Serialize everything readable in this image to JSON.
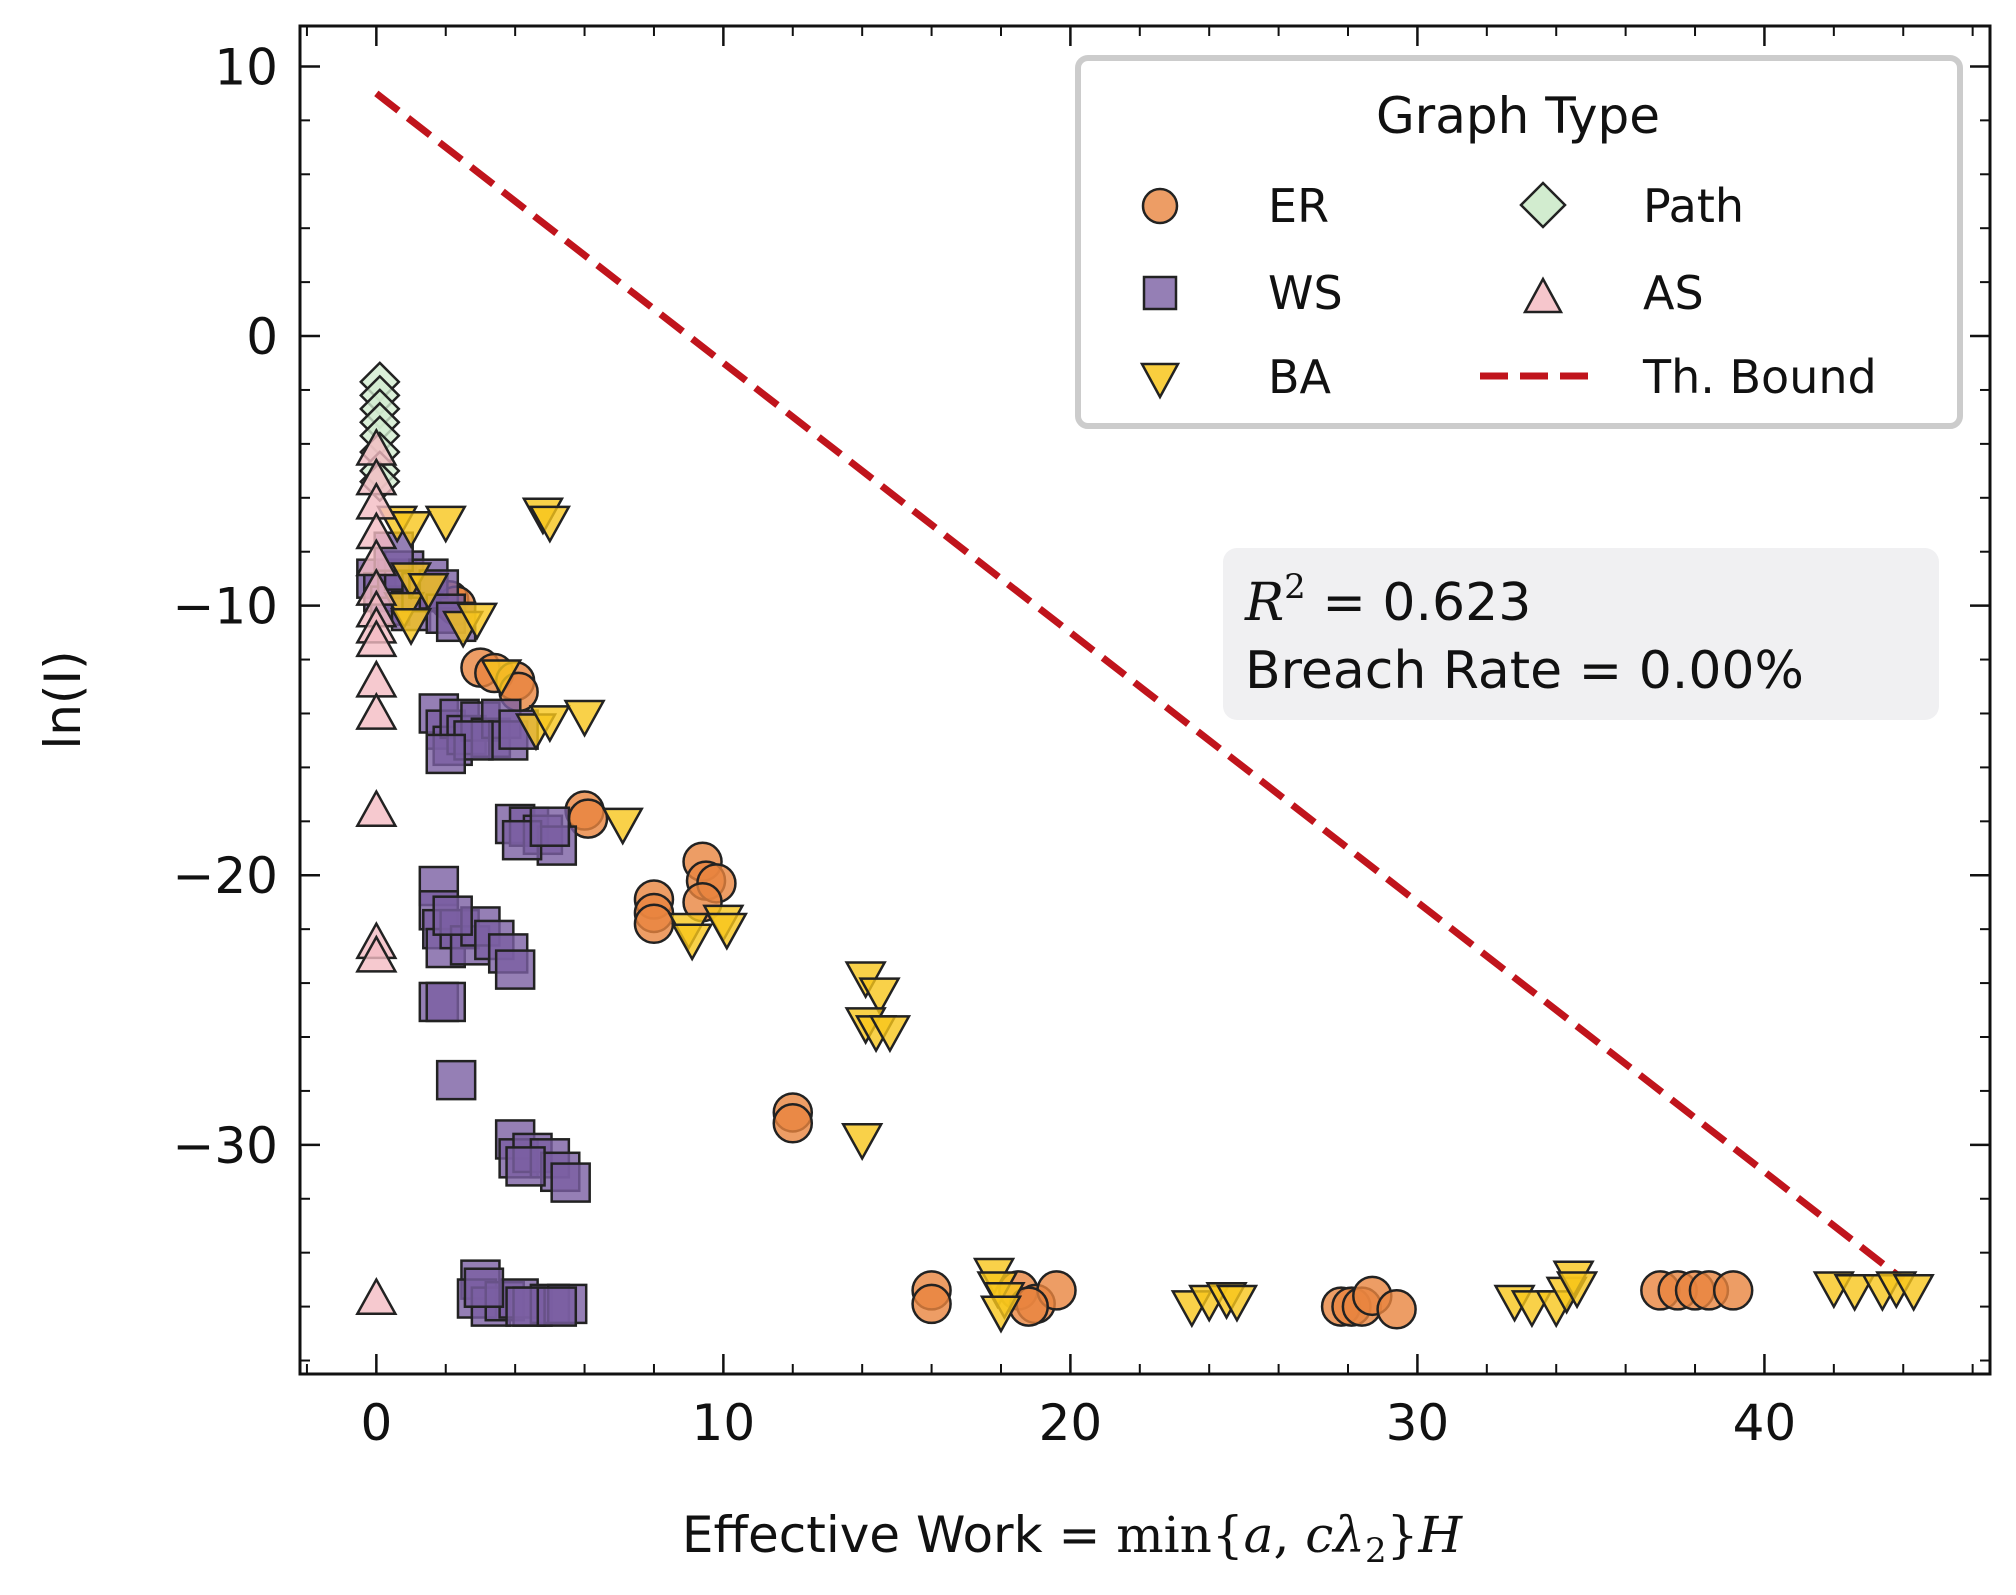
{
  "chart_data": {
    "type": "scatter",
    "xlabel_prefix": "Effective Work = ",
    "xlabel_math": {
      "func": "min",
      "lbrace": "{",
      "a": "a",
      "comma": ", ",
      "c": "c",
      "lambda": "λ",
      "sub": "2",
      "rbrace": "}",
      "H": "H"
    },
    "ylabel": "ln(I)",
    "xlim": [
      -2.2,
      46.5
    ],
    "ylim": [
      -38.5,
      11.5
    ],
    "xticks": [
      0,
      10,
      20,
      30,
      40
    ],
    "yticks": [
      10,
      0,
      -10,
      -20,
      -30
    ],
    "xtick_labels": [
      "0",
      "10",
      "20",
      "30",
      "40"
    ],
    "ytick_labels": [
      "10",
      "0",
      "−10",
      "−20",
      "−30"
    ],
    "legend": {
      "title": "Graph Type",
      "position": "top-right",
      "entries": [
        {
          "label": "ER",
          "marker": "circle"
        },
        {
          "label": "WS",
          "marker": "square"
        },
        {
          "label": "BA",
          "marker": "triangle-down"
        },
        {
          "label": "Path",
          "marker": "diamond"
        },
        {
          "label": "AS",
          "marker": "triangle-up"
        },
        {
          "label": "Th. Bound",
          "marker": "dashed-line"
        }
      ]
    },
    "annotation": {
      "r2_symbol": "R",
      "r2_exp": "2",
      "r2_value": " = 0.623",
      "breach": "Breach Rate = 0.00%"
    },
    "bound_line": {
      "x": [
        0,
        44
      ],
      "y": [
        9,
        -35
      ]
    },
    "series": [
      {
        "name": "ER",
        "color": "#E8853F",
        "marker": "circle",
        "points": [
          [
            2.1,
            -9.8
          ],
          [
            2.3,
            -10.0
          ],
          [
            3.0,
            -12.3
          ],
          [
            3.4,
            -12.5
          ],
          [
            4.0,
            -12.8
          ],
          [
            4.1,
            -13.2
          ],
          [
            6.0,
            -17.6
          ],
          [
            6.1,
            -17.9
          ],
          [
            8.0,
            -20.9
          ],
          [
            8.0,
            -21.4
          ],
          [
            8.0,
            -21.8
          ],
          [
            9.4,
            -19.5
          ],
          [
            9.5,
            -20.2
          ],
          [
            9.8,
            -20.3
          ],
          [
            9.4,
            -21.0
          ],
          [
            12.0,
            -28.8
          ],
          [
            12.0,
            -29.2
          ],
          [
            16.0,
            -35.4
          ],
          [
            16.0,
            -35.9
          ],
          [
            18.5,
            -35.4
          ],
          [
            19.0,
            -35.9
          ],
          [
            19.6,
            -35.4
          ],
          [
            18.8,
            -36.0
          ],
          [
            27.8,
            -36.0
          ],
          [
            28.1,
            -36.0
          ],
          [
            28.4,
            -36.0
          ],
          [
            28.7,
            -35.6
          ],
          [
            29.4,
            -36.1
          ],
          [
            37.0,
            -35.4
          ],
          [
            37.5,
            -35.4
          ],
          [
            38.0,
            -35.4
          ],
          [
            38.4,
            -35.4
          ],
          [
            39.1,
            -35.4
          ]
        ]
      },
      {
        "name": "WS",
        "color": "#7A5FA2",
        "marker": "square",
        "points": [
          [
            0.0,
            -9.0
          ],
          [
            0.2,
            -9.5
          ],
          [
            0.4,
            -10.0
          ],
          [
            0.6,
            -9.0
          ],
          [
            0.8,
            -8.7
          ],
          [
            1.0,
            -10.2
          ],
          [
            1.3,
            -9.5
          ],
          [
            1.5,
            -9.0
          ],
          [
            1.8,
            -9.4
          ],
          [
            2.0,
            -10.3
          ],
          [
            2.3,
            -10.6
          ],
          [
            0.5,
            -8.0
          ],
          [
            1.8,
            -14.0
          ],
          [
            2.0,
            -14.6
          ],
          [
            2.2,
            -15.2
          ],
          [
            2.4,
            -14.2
          ],
          [
            2.6,
            -14.8
          ],
          [
            3.0,
            -14.3
          ],
          [
            3.3,
            -14.9
          ],
          [
            3.6,
            -14.2
          ],
          [
            3.8,
            -15.0
          ],
          [
            4.1,
            -14.6
          ],
          [
            2.8,
            -15.0
          ],
          [
            2.0,
            -15.5
          ],
          [
            4.0,
            -18.1
          ],
          [
            4.4,
            -18.2
          ],
          [
            4.8,
            -18.5
          ],
          [
            5.2,
            -18.9
          ],
          [
            4.2,
            -18.7
          ],
          [
            5.0,
            -18.2
          ],
          [
            1.8,
            -20.4
          ],
          [
            1.8,
            -21.3
          ],
          [
            1.9,
            -22.0
          ],
          [
            2.0,
            -22.7
          ],
          [
            2.4,
            -22.0
          ],
          [
            2.7,
            -22.6
          ],
          [
            3.0,
            -21.9
          ],
          [
            3.4,
            -22.4
          ],
          [
            3.8,
            -22.9
          ],
          [
            4.0,
            -23.5
          ],
          [
            2.2,
            -21.5
          ],
          [
            1.8,
            -24.7
          ],
          [
            2.0,
            -24.7
          ],
          [
            2.3,
            -27.6
          ],
          [
            4.0,
            -29.8
          ],
          [
            4.1,
            -30.5
          ],
          [
            4.5,
            -30.3
          ],
          [
            5.0,
            -30.5
          ],
          [
            5.3,
            -31.0
          ],
          [
            5.6,
            -31.4
          ],
          [
            4.3,
            -30.8
          ],
          [
            3.0,
            -35.0
          ],
          [
            2.9,
            -35.7
          ],
          [
            3.3,
            -36.0
          ],
          [
            3.7,
            -35.8
          ],
          [
            4.1,
            -35.7
          ],
          [
            4.5,
            -36.0
          ],
          [
            5.0,
            -35.9
          ],
          [
            5.5,
            -35.9
          ],
          [
            4.3,
            -36.0
          ],
          [
            5.2,
            -36.0
          ],
          [
            3.1,
            -35.3
          ]
        ]
      },
      {
        "name": "BA",
        "color": "#F8C51C",
        "marker": "triangle-down",
        "points": [
          [
            0.6,
            -6.9
          ],
          [
            1.0,
            -7.1
          ],
          [
            2.0,
            -6.9
          ],
          [
            4.8,
            -6.6
          ],
          [
            5.0,
            -6.9
          ],
          [
            1.0,
            -9.0
          ],
          [
            0.8,
            -10.1
          ],
          [
            1.0,
            -10.7
          ],
          [
            1.5,
            -9.4
          ],
          [
            2.5,
            -10.8
          ],
          [
            2.9,
            -10.5
          ],
          [
            3.6,
            -12.6
          ],
          [
            4.6,
            -14.6
          ],
          [
            5.0,
            -14.3
          ],
          [
            6.0,
            -14.1
          ],
          [
            7.1,
            -18.1
          ],
          [
            9.0,
            -22.0
          ],
          [
            9.1,
            -22.4
          ],
          [
            10.0,
            -21.7
          ],
          [
            10.1,
            -22.0
          ],
          [
            14.1,
            -23.8
          ],
          [
            14.5,
            -24.4
          ],
          [
            14.1,
            -25.5
          ],
          [
            14.4,
            -25.8
          ],
          [
            14.8,
            -25.8
          ],
          [
            14.0,
            -29.8
          ],
          [
            17.8,
            -34.8
          ],
          [
            17.9,
            -35.3
          ],
          [
            18.1,
            -35.7
          ],
          [
            18.0,
            -36.2
          ],
          [
            23.5,
            -36.0
          ],
          [
            24.0,
            -35.8
          ],
          [
            24.5,
            -35.7
          ],
          [
            24.8,
            -35.8
          ],
          [
            32.8,
            -35.8
          ],
          [
            33.3,
            -36.0
          ],
          [
            34.0,
            -36.0
          ],
          [
            34.3,
            -35.5
          ],
          [
            34.5,
            -34.9
          ],
          [
            34.6,
            -35.3
          ],
          [
            42.0,
            -35.3
          ],
          [
            42.6,
            -35.4
          ],
          [
            43.4,
            -35.4
          ],
          [
            43.8,
            -35.3
          ],
          [
            44.3,
            -35.4
          ]
        ]
      },
      {
        "name": "Path",
        "color": "#D2ECCF",
        "marker": "diamond",
        "points": [
          [
            0.1,
            -1.7
          ],
          [
            0.1,
            -2.2
          ],
          [
            0.1,
            -2.7
          ],
          [
            0.1,
            -3.2
          ],
          [
            0.1,
            -3.7
          ],
          [
            0.1,
            -4.3
          ],
          [
            0.1,
            -5.0
          ],
          [
            0.1,
            -5.4
          ]
        ]
      },
      {
        "name": "AS",
        "color": "#F4BCC3",
        "marker": "triangle-up",
        "points": [
          [
            0.0,
            -4.2
          ],
          [
            0.0,
            -5.3
          ],
          [
            0.0,
            -6.2
          ],
          [
            0.0,
            -7.3
          ],
          [
            0.0,
            -8.3
          ],
          [
            0.0,
            -9.4
          ],
          [
            0.0,
            -10.2
          ],
          [
            0.0,
            -10.8
          ],
          [
            0.0,
            -11.3
          ],
          [
            0.0,
            -12.8
          ],
          [
            0.0,
            -14.0
          ],
          [
            0.0,
            -17.6
          ],
          [
            0.0,
            -22.5
          ],
          [
            0.0,
            -23.0
          ],
          [
            0.0,
            -35.7
          ]
        ]
      }
    ]
  }
}
